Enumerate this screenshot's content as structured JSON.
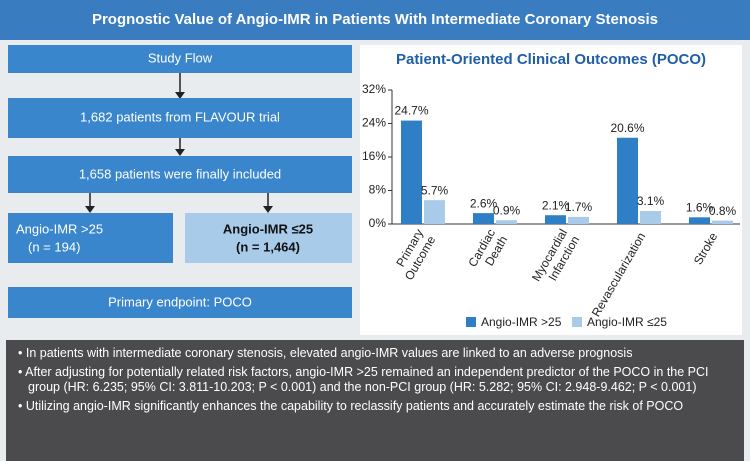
{
  "header": {
    "title": "Prognostic Value of Angio-IMR in Patients With Intermediate Coronary Stenosis"
  },
  "flow": {
    "title": "Study Flow",
    "step1": "1,682 patients from FLAVOUR trial",
    "step2": "1,658 patients were finally included",
    "group_high": {
      "label": "Angio-IMR >25",
      "n": "(n = 194)"
    },
    "group_low": {
      "label": "Angio-IMR ≤25",
      "n": "(n = 1,464)"
    },
    "endpoint": "Primary endpoint: POCO"
  },
  "chart_data": {
    "type": "bar",
    "title": "Patient-Oriented Clinical Outcomes (POCO)",
    "categories": [
      "Primary Outcome",
      "Cardiac Death",
      "Myocardial Infarction",
      "Revascularization",
      "Stroke"
    ],
    "series": [
      {
        "name": "Angio-IMR >25",
        "color": "#2f7fc6",
        "values": [
          24.7,
          2.6,
          2.1,
          20.6,
          1.6
        ],
        "value_labels": [
          "24.7%",
          "2.6%",
          "2.1%",
          "20.6%",
          "1.6%"
        ]
      },
      {
        "name": "Angio-IMR ≤25",
        "color": "#a8cbea",
        "values": [
          5.7,
          0.9,
          1.7,
          3.1,
          0.8
        ],
        "value_labels": [
          "5.7%",
          "0.9%",
          "1.7%",
          "3.1%",
          "0.8%"
        ]
      }
    ],
    "ylim": [
      0,
      32
    ],
    "yticks": [
      {
        "value": 0,
        "label": "0%"
      },
      {
        "value": 8,
        "label": "8%"
      },
      {
        "value": 16,
        "label": "16%"
      },
      {
        "value": 24,
        "label": "24%"
      },
      {
        "value": 32,
        "label": "32%"
      }
    ],
    "legend": "bottom"
  },
  "summary": {
    "bullets": [
      "In patients with intermediate coronary stenosis, elevated angio-IMR values are linked to an adverse prognosis",
      "After adjusting for potentially related risk factors, angio-IMR >25 remained an independent predictor of the POCO in the PCI group (HR: 6.235; 95% CI: 3.811-10.203; P < 0.001) and the non-PCI group (HR: 5.282; 95% CI: 2.948-9.462; P < 0.001)",
      "Utilizing angio-IMR significantly enhances the capability to reclassify patients and accurately estimate the risk of POCO"
    ]
  }
}
